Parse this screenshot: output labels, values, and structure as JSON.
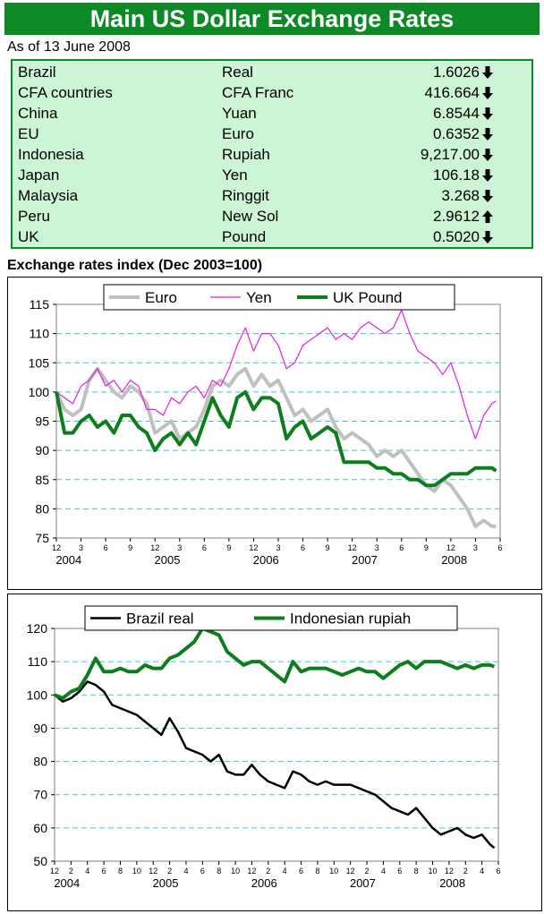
{
  "header": {
    "title": "Main US Dollar Exchange Rates",
    "as_of": "As of 13 June 2008"
  },
  "rates": [
    {
      "country": "Brazil",
      "currency": "Real",
      "rate": "1.6026",
      "direction": "down"
    },
    {
      "country": "CFA countries",
      "currency": "CFA Franc",
      "rate": "416.664",
      "direction": "down"
    },
    {
      "country": "China",
      "currency": "Yuan",
      "rate": "6.8544",
      "direction": "down"
    },
    {
      "country": "EU",
      "currency": "Euro",
      "rate": "0.6352",
      "direction": "down"
    },
    {
      "country": "Indonesia",
      "currency": "Rupiah",
      "rate": "9,217.00",
      "direction": "down"
    },
    {
      "country": "Japan",
      "currency": "Yen",
      "rate": "106.18",
      "direction": "down"
    },
    {
      "country": "Malaysia",
      "currency": "Ringgit",
      "rate": "3.268",
      "direction": "down"
    },
    {
      "country": "Peru",
      "currency": "New Sol",
      "rate": "2.9612",
      "direction": "up"
    },
    {
      "country": "UK",
      "currency": "Pound",
      "rate": "0.5020",
      "direction": "down"
    }
  ],
  "colors": {
    "brand_green": "#0d8a26",
    "table_bg": "#ccf5d6",
    "euro": "#c0c0c0",
    "yen": "#e61ee6",
    "pound": "#0d7d1e",
    "real": "#000000",
    "rupiah": "#0d7d1e",
    "gridline": "#33cccc"
  },
  "chart_data": [
    {
      "type": "line",
      "title": "Exchange rates index (Dec 2003=100)",
      "ylim": [
        75,
        115
      ],
      "yticks": [
        75,
        80,
        85,
        90,
        95,
        100,
        105,
        110,
        115
      ],
      "x_month_ticks": [
        "12",
        "3",
        "6",
        "9",
        "12",
        "3",
        "6",
        "9",
        "12",
        "3",
        "6",
        "9",
        "12",
        "3",
        "6",
        "9",
        "12",
        "3",
        "6"
      ],
      "x_year_labels": [
        "2004",
        "2005",
        "2006",
        "2007",
        "2008"
      ],
      "x_range_months": [
        0,
        54
      ],
      "legend": "top",
      "grid": "horizontal dashed",
      "series": [
        {
          "name": "Euro",
          "color": "#c0c0c0",
          "x": [
            0,
            1,
            2,
            3,
            4,
            5,
            6,
            7,
            8,
            9,
            10,
            11,
            12,
            13,
            14,
            15,
            16,
            17,
            18,
            19,
            20,
            21,
            22,
            23,
            24,
            25,
            26,
            27,
            28,
            29,
            30,
            31,
            32,
            33,
            34,
            35,
            36,
            37,
            38,
            39,
            40,
            41,
            42,
            43,
            44,
            45,
            46,
            47,
            48,
            49,
            50,
            51,
            52,
            53,
            53.5
          ],
          "y": [
            100,
            97,
            96,
            97,
            102,
            104,
            102,
            100,
            99,
            101,
            100,
            98,
            93,
            94,
            95,
            92,
            93,
            94,
            97,
            101,
            102,
            101,
            103,
            104,
            101,
            103,
            101,
            102,
            99,
            96,
            97,
            95,
            96,
            97,
            94,
            92,
            93,
            92,
            91,
            89,
            90,
            89,
            90,
            88,
            86,
            84,
            83,
            85,
            84,
            82,
            80,
            77,
            78,
            77,
            77
          ]
        },
        {
          "name": "Yen",
          "color": "#e61ee6",
          "x": [
            0,
            1,
            2,
            3,
            4,
            5,
            6,
            7,
            8,
            9,
            10,
            11,
            12,
            13,
            14,
            15,
            16,
            17,
            18,
            19,
            20,
            21,
            22,
            23,
            24,
            25,
            26,
            27,
            28,
            29,
            30,
            31,
            32,
            33,
            34,
            35,
            36,
            37,
            38,
            39,
            40,
            41,
            42,
            43,
            44,
            45,
            46,
            47,
            48,
            49,
            50,
            51,
            52,
            53,
            53.5
          ],
          "y": [
            100,
            99,
            98,
            101,
            102,
            104,
            101,
            102,
            100,
            102,
            101,
            97,
            97,
            96,
            99,
            98,
            100,
            101,
            99,
            102,
            101,
            104,
            108,
            111,
            107,
            110,
            110,
            108,
            104,
            105,
            108,
            109,
            110,
            111,
            109,
            110,
            109,
            111,
            112,
            111,
            110,
            111,
            114,
            110,
            107,
            106,
            105,
            103,
            105,
            101,
            96,
            92,
            96,
            98,
            98.5
          ]
        },
        {
          "name": "UK Pound",
          "color": "#0d7d1e",
          "x": [
            0,
            1,
            2,
            3,
            4,
            5,
            6,
            7,
            8,
            9,
            10,
            11,
            12,
            13,
            14,
            15,
            16,
            17,
            18,
            19,
            20,
            21,
            22,
            23,
            24,
            25,
            26,
            27,
            28,
            29,
            30,
            31,
            32,
            33,
            34,
            35,
            36,
            37,
            38,
            39,
            40,
            41,
            42,
            43,
            44,
            45,
            46,
            47,
            48,
            49,
            50,
            51,
            52,
            53,
            53.5
          ],
          "y": [
            100,
            93,
            93,
            95,
            96,
            94,
            95,
            93,
            96,
            96,
            94,
            93,
            90,
            92,
            93,
            91,
            93,
            91,
            95,
            99,
            96,
            94,
            99,
            100,
            97,
            99,
            99,
            98,
            92,
            94,
            95,
            92,
            93,
            94,
            93,
            88,
            88,
            88,
            88,
            87,
            87,
            86,
            86,
            85,
            85,
            84,
            84,
            85,
            86,
            86,
            86,
            87,
            87,
            87,
            86.5
          ]
        }
      ]
    },
    {
      "type": "line",
      "ylim": [
        50,
        120
      ],
      "yticks": [
        50,
        60,
        70,
        80,
        90,
        100,
        110,
        120
      ],
      "x_month_ticks": [
        "12",
        "2",
        "4",
        "6",
        "8",
        "10",
        "12",
        "2",
        "4",
        "6",
        "8",
        "10",
        "12",
        "2",
        "4",
        "6",
        "8",
        "10",
        "12",
        "2",
        "4",
        "6",
        "8",
        "10",
        "12",
        "2",
        "4",
        "6"
      ],
      "x_year_labels": [
        "2004",
        "2005",
        "2006",
        "2007",
        "2008"
      ],
      "x_range_months": [
        0,
        54
      ],
      "legend": "top",
      "grid": "horizontal dashed",
      "series": [
        {
          "name": "Brazil real",
          "color": "#000000",
          "x": [
            0,
            1,
            2,
            3,
            4,
            5,
            6,
            7,
            8,
            9,
            10,
            11,
            12,
            13,
            14,
            15,
            16,
            17,
            18,
            19,
            20,
            21,
            22,
            23,
            24,
            25,
            26,
            27,
            28,
            29,
            30,
            31,
            32,
            33,
            34,
            35,
            36,
            37,
            38,
            39,
            40,
            41,
            42,
            43,
            44,
            45,
            46,
            47,
            48,
            49,
            50,
            51,
            52,
            53,
            53.5
          ],
          "y": [
            100,
            98,
            99,
            101,
            104,
            103,
            101,
            97,
            96,
            95,
            94,
            92,
            90,
            88,
            93,
            89,
            84,
            83,
            82,
            80,
            82,
            77,
            76,
            76,
            79,
            76,
            74,
            73,
            72,
            77,
            76,
            74,
            73,
            74,
            73,
            73,
            73,
            72,
            71,
            70,
            68,
            66,
            65,
            64,
            66,
            63,
            60,
            58,
            59,
            60,
            58,
            57,
            58,
            55,
            54
          ]
        },
        {
          "name": "Indonesian rupiah",
          "color": "#0d7d1e",
          "x": [
            0,
            1,
            2,
            3,
            4,
            5,
            6,
            7,
            8,
            9,
            10,
            11,
            12,
            13,
            14,
            15,
            16,
            17,
            18,
            19,
            20,
            21,
            22,
            23,
            24,
            25,
            26,
            27,
            28,
            29,
            30,
            31,
            32,
            33,
            34,
            35,
            36,
            37,
            38,
            39,
            40,
            41,
            42,
            43,
            44,
            45,
            46,
            47,
            48,
            49,
            50,
            51,
            52,
            53,
            53.5
          ],
          "y": [
            100,
            99,
            101,
            102,
            106,
            111,
            107,
            107,
            108,
            107,
            107,
            109,
            108,
            108,
            111,
            112,
            114,
            116,
            120,
            119,
            118,
            113,
            111,
            109,
            110,
            110,
            108,
            106,
            104,
            110,
            107,
            108,
            108,
            108,
            107,
            106,
            107,
            108,
            107,
            107,
            105,
            107,
            109,
            110,
            108,
            110,
            110,
            110,
            109,
            108,
            109,
            108,
            109,
            109,
            108.5
          ]
        }
      ]
    }
  ]
}
